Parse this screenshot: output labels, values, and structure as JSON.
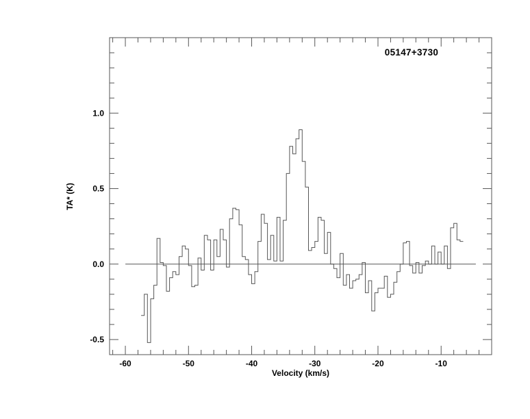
{
  "title": "05147+3730",
  "axes": {
    "xlabel": "Velocity (km/s)",
    "ylabel": "TA* (K)",
    "x_tick_labels": [
      "-60",
      "-50",
      "-40",
      "-30",
      "-20",
      "-10"
    ],
    "x_major_ticks": [
      -60,
      -50,
      -40,
      -30,
      -20,
      -10
    ],
    "x_minor_step": 2,
    "y_tick_labels": [
      "-0.5",
      "0.0",
      "0.5",
      "1.0"
    ],
    "y_major_ticks": [
      -0.5,
      0.0,
      0.5,
      1.0
    ],
    "y_minor_step": 0.1,
    "xlim": [
      -62.5,
      -2.0
    ],
    "ylim": [
      -0.6,
      1.5
    ]
  },
  "colors": {
    "line": "#565656",
    "text": "#000000",
    "background": "#ffffff"
  },
  "chart_data": {
    "type": "line",
    "mode": "histogram-step",
    "title": "05147+3730",
    "xlabel": "Velocity (km/s)",
    "ylabel": "TA* (K)",
    "xlim": [
      -62.5,
      -2.0
    ],
    "ylim": [
      -0.6,
      1.5
    ],
    "grid": false,
    "legend": "none",
    "x_start": -57.5,
    "dx": 0.5,
    "zero_line": {
      "y": 0.0,
      "x_from": -60.0,
      "x_to": -4.5
    },
    "values": [
      -0.34,
      -0.2,
      -0.52,
      -0.23,
      -0.14,
      0.17,
      0.01,
      -0.01,
      -0.18,
      -0.09,
      -0.05,
      -0.07,
      0.05,
      0.12,
      0.1,
      -0.01,
      -0.15,
      -0.14,
      0.04,
      -0.04,
      0.19,
      0.16,
      -0.04,
      0.16,
      0.05,
      0.23,
      0.16,
      -0.02,
      0.3,
      0.37,
      0.36,
      0.26,
      0.05,
      0.03,
      -0.07,
      -0.13,
      -0.05,
      0.15,
      0.33,
      0.27,
      0.03,
      0.19,
      0.02,
      0.31,
      0.02,
      0.29,
      0.6,
      0.78,
      0.73,
      0.83,
      0.89,
      0.68,
      0.51,
      0.09,
      0.11,
      0.15,
      0.31,
      0.29,
      0.07,
      0.21,
      0.0,
      -0.03,
      -0.09,
      0.07,
      -0.14,
      -0.07,
      -0.16,
      -0.11,
      -0.1,
      -0.07,
      0.01,
      -0.19,
      -0.11,
      -0.31,
      -0.19,
      -0.16,
      -0.16,
      -0.08,
      -0.22,
      -0.2,
      -0.12,
      -0.05,
      0.0,
      0.14,
      0.15,
      -0.01,
      -0.06,
      0.01,
      -0.06,
      -0.01,
      0.02,
      0.0,
      0.12,
      0.0,
      0.08,
      0.0,
      0.12,
      -0.03,
      0.24,
      0.27,
      0.16,
      0.15
    ]
  }
}
